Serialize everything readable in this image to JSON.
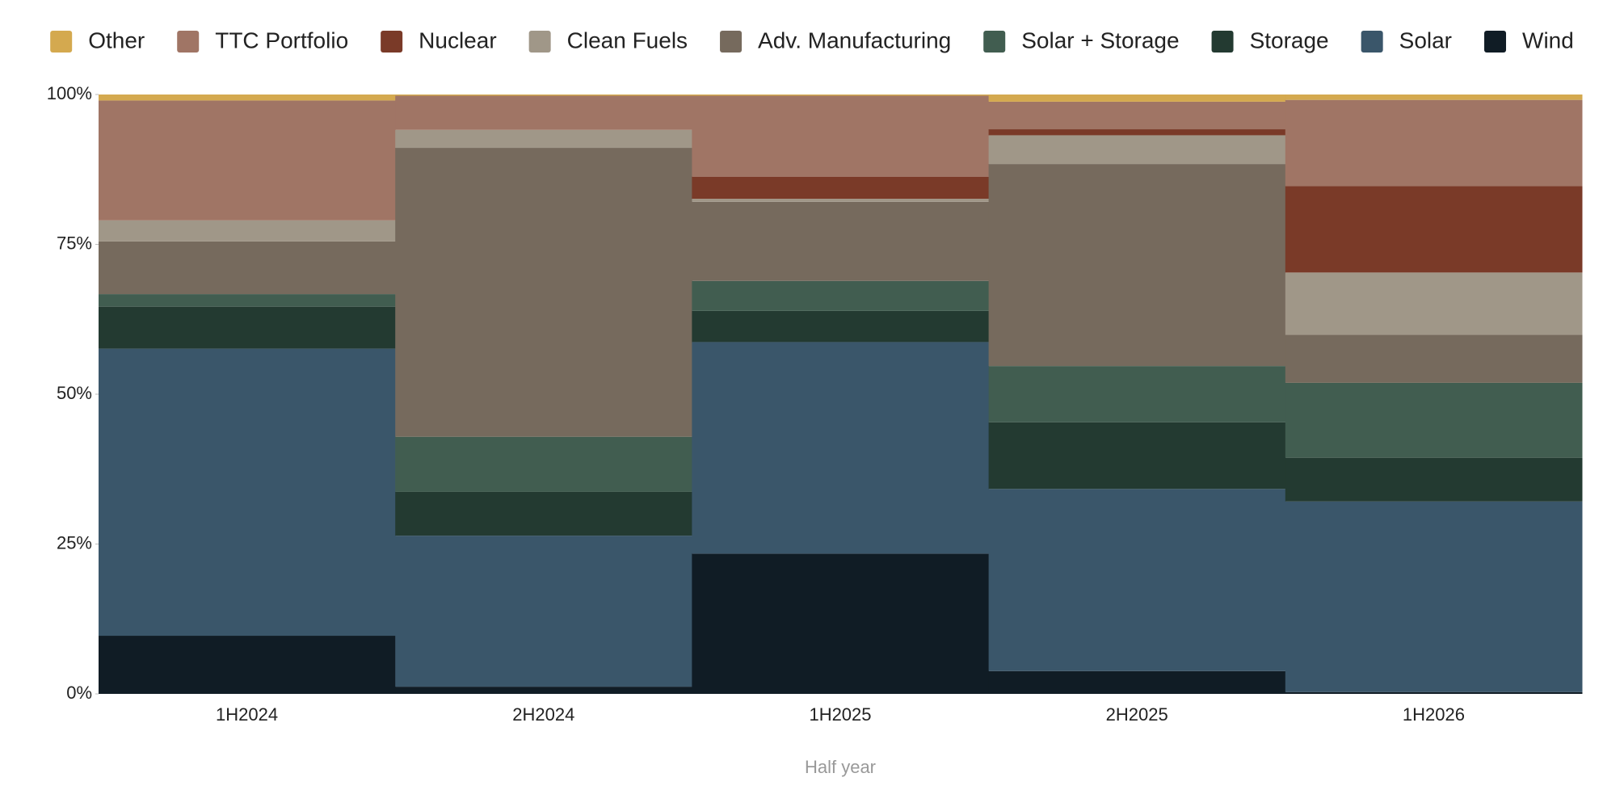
{
  "chart_data": {
    "type": "stacked-step-area",
    "x_label": "Half year",
    "categories": [
      "1H2024",
      "2H2024",
      "1H2025",
      "2H2025",
      "1H2026"
    ],
    "series": [
      {
        "name": "Wind",
        "color": "#101c25",
        "values": [
          9.7,
          1.2,
          23.4,
          3.8,
          0.3
        ]
      },
      {
        "name": "Solar",
        "color": "#3a566a",
        "values": [
          47.9,
          25.2,
          35.3,
          30.4,
          31.8
        ]
      },
      {
        "name": "Storage",
        "color": "#233a31",
        "values": [
          7.0,
          7.3,
          5.2,
          11.1,
          7.3
        ]
      },
      {
        "name": "Solar + Storage",
        "color": "#415d50",
        "values": [
          2.1,
          9.2,
          5.0,
          9.4,
          12.5
        ]
      },
      {
        "name": "Adv. Manufacturing",
        "color": "#766a5d",
        "values": [
          8.8,
          48.2,
          13.2,
          33.7,
          8.0
        ]
      },
      {
        "name": "Clean Fuels",
        "color": "#a09788",
        "values": [
          3.5,
          3.0,
          0.5,
          4.8,
          10.4
        ]
      },
      {
        "name": "Nuclear",
        "color": "#7a3a28",
        "values": [
          0,
          0,
          3.7,
          1.0,
          14.4
        ]
      },
      {
        "name": "TTC Portfolio",
        "color": "#a07565",
        "values": [
          20.0,
          5.7,
          13.5,
          4.6,
          14.4
        ]
      },
      {
        "name": "Other",
        "color": "#d4a94f",
        "values": [
          1.0,
          0.2,
          0.2,
          1.2,
          0.9
        ]
      }
    ],
    "ylim": [
      0,
      100
    ],
    "yticks": [
      {
        "value": 0,
        "label": "0%"
      },
      {
        "value": 25,
        "label": "25%"
      },
      {
        "value": 50,
        "label": "50%"
      },
      {
        "value": 75,
        "label": "75%"
      },
      {
        "value": 100,
        "label": "100%"
      }
    ]
  }
}
